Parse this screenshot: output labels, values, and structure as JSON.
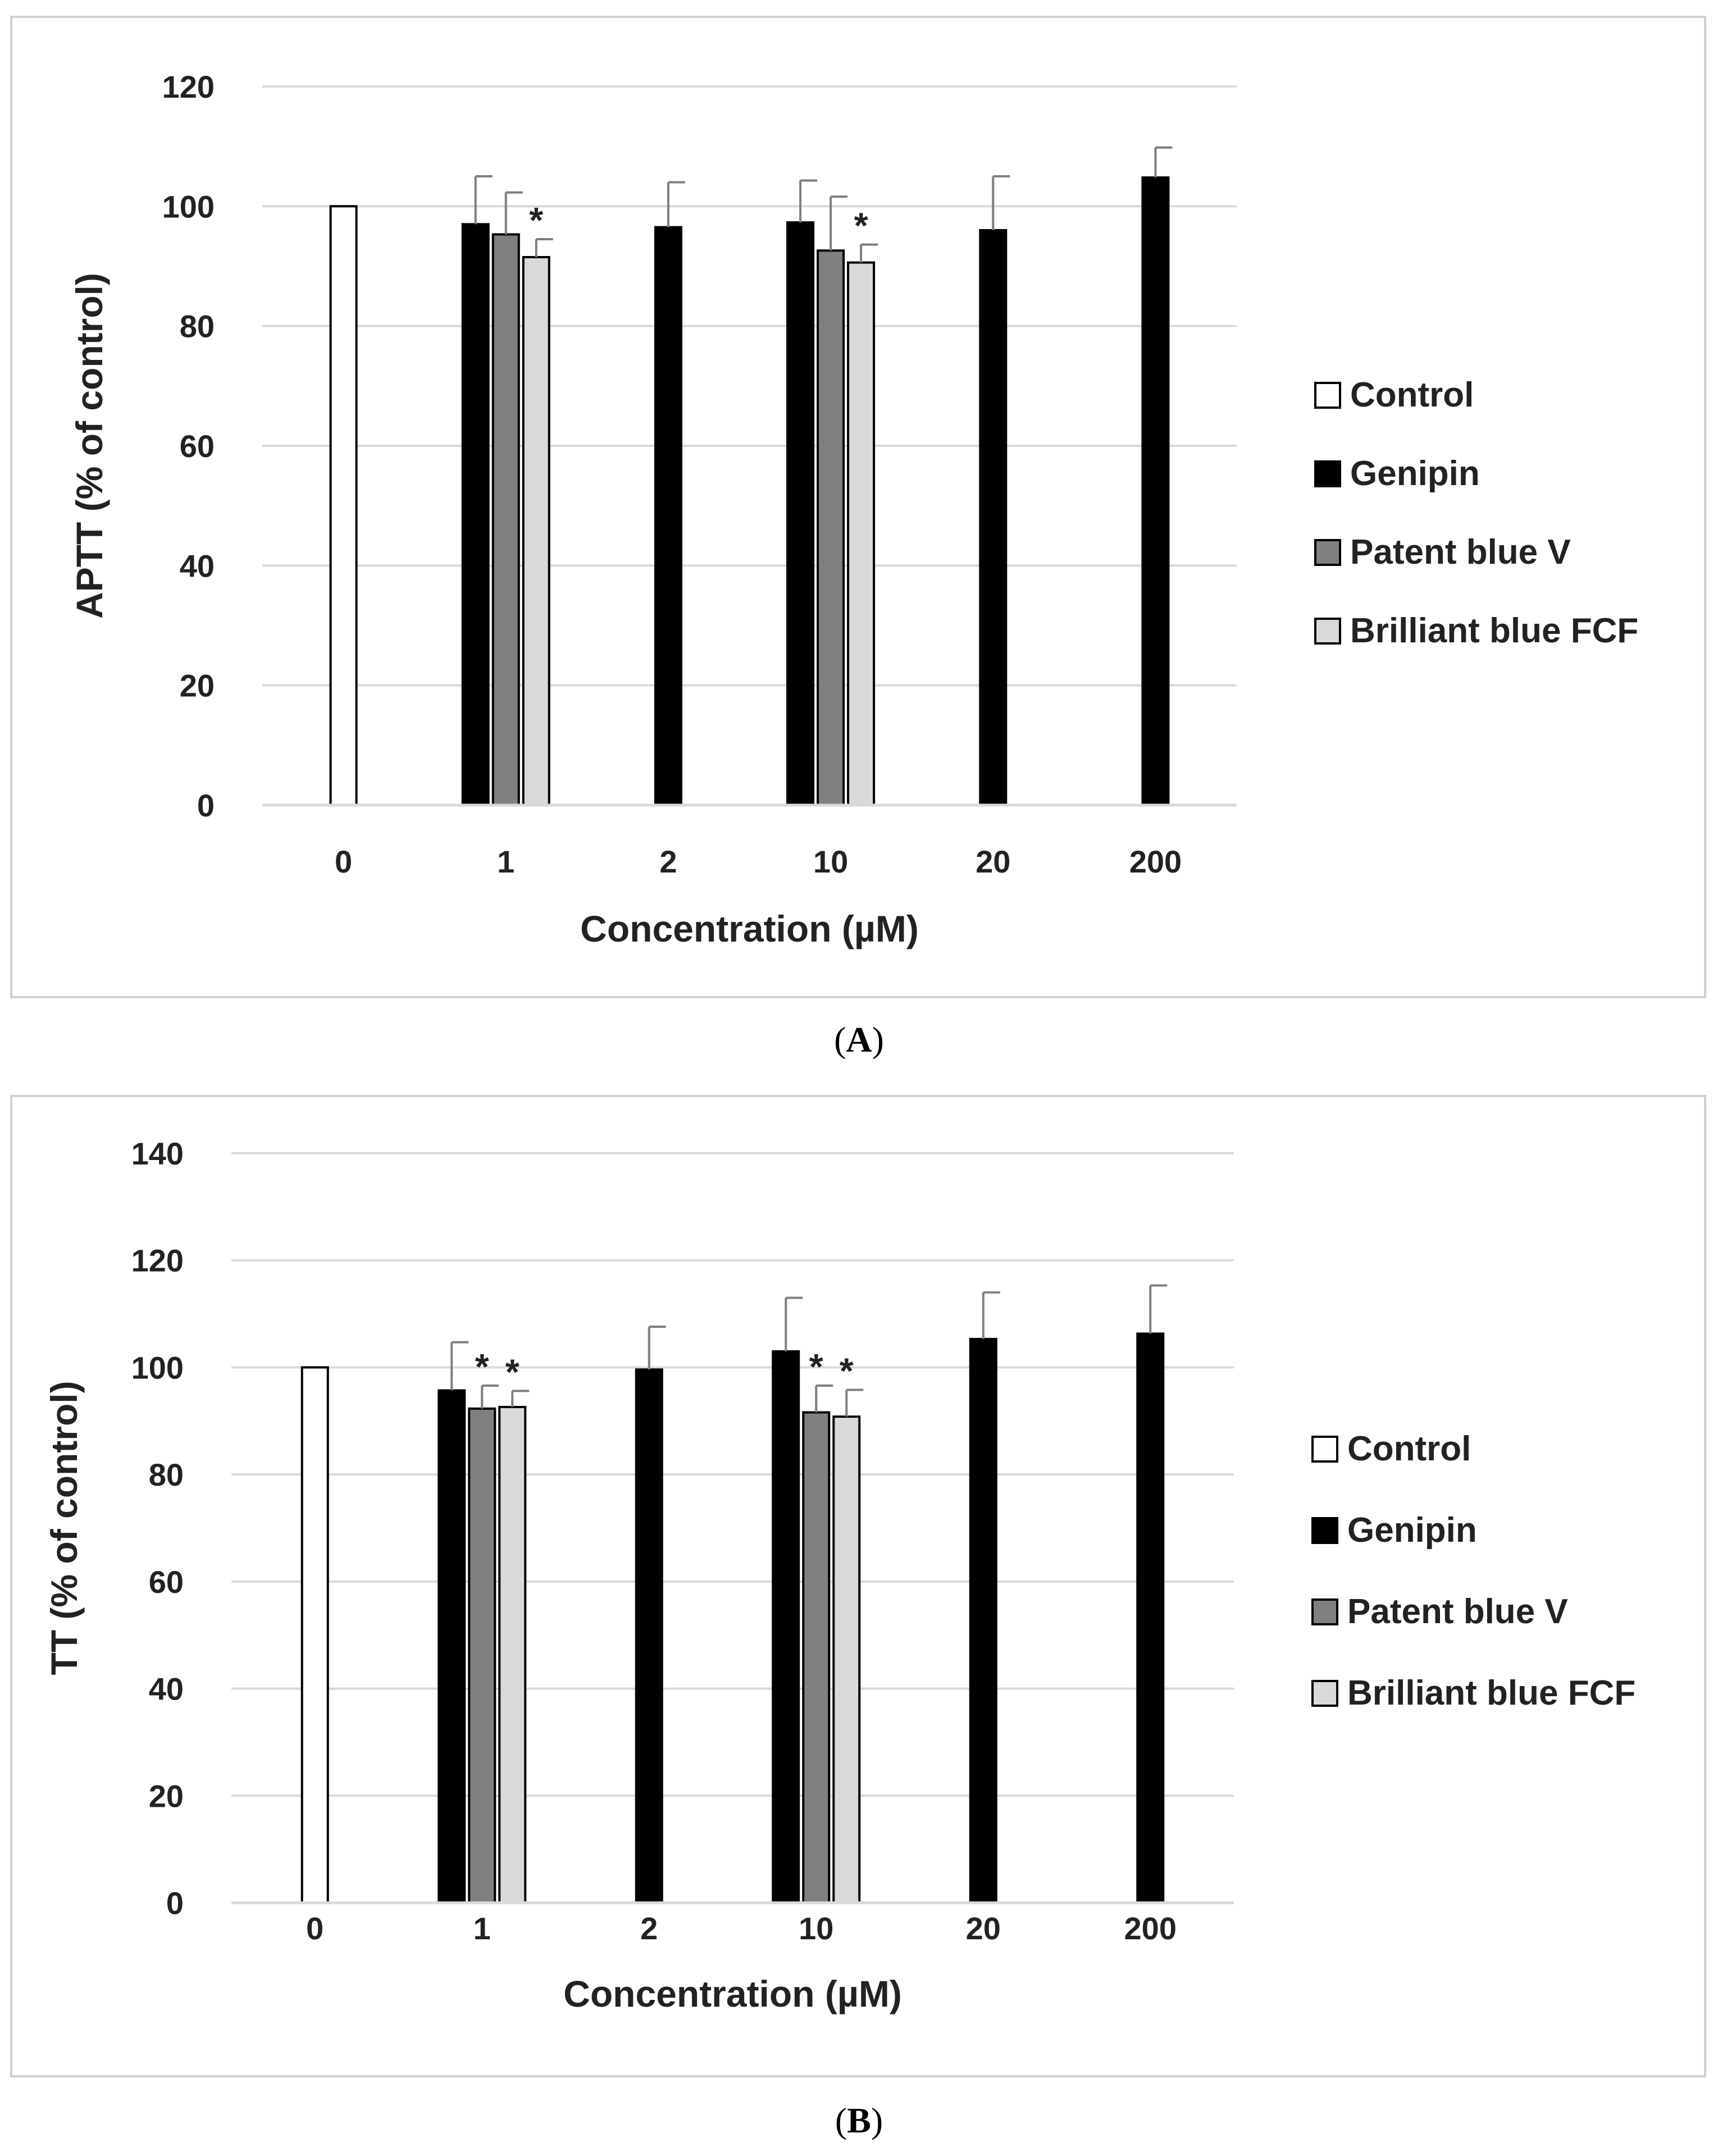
{
  "captions": {
    "a_prefix": "(",
    "a_letter": "A",
    "a_suffix": ")",
    "b_prefix": "(",
    "b_letter": "B",
    "b_suffix": ")"
  },
  "colors": {
    "control": "#ffffff",
    "genipin": "#000000",
    "patent_blue": "#808080",
    "brilliant_blue": "#d9d9d9",
    "grid": "#d9d9d9",
    "error_bar": "#7f7f7f",
    "outline": "#000000"
  },
  "chart_data": [
    {
      "id": "A",
      "type": "bar",
      "title": "",
      "xlabel": "Concentration (µM)",
      "ylabel": "APTT (% of control)",
      "ylim": [
        0,
        120
      ],
      "yticks": [
        0,
        20,
        40,
        60,
        80,
        100,
        120
      ],
      "categories": [
        "0",
        "1",
        "2",
        "10",
        "20",
        "200"
      ],
      "legend_position": "right",
      "series": [
        {
          "name": "Control",
          "color_key": "control",
          "values": [
            100,
            null,
            null,
            null,
            null,
            null
          ],
          "errors": [
            0,
            null,
            null,
            null,
            null,
            null
          ],
          "sig": [
            false,
            null,
            null,
            null,
            null,
            null
          ]
        },
        {
          "name": "Genipin",
          "color_key": "genipin",
          "values": [
            null,
            97,
            96.5,
            97.3,
            96,
            104.8
          ],
          "errors": [
            null,
            8,
            7.5,
            7,
            9,
            5
          ],
          "sig": [
            null,
            false,
            false,
            false,
            false,
            false
          ]
        },
        {
          "name": "Patent blue V",
          "color_key": "patent_blue",
          "values": [
            null,
            95.3,
            null,
            92.6,
            null,
            null
          ],
          "errors": [
            null,
            7,
            null,
            9,
            null,
            null
          ],
          "sig": [
            null,
            false,
            null,
            false,
            null,
            null
          ]
        },
        {
          "name": "Brilliant blue FCF",
          "color_key": "brilliant_blue",
          "values": [
            null,
            91.5,
            null,
            90.6,
            null,
            null
          ],
          "errors": [
            null,
            3,
            null,
            3,
            null,
            null
          ],
          "sig": [
            null,
            true,
            null,
            true,
            null,
            null
          ]
        }
      ],
      "sig_marker": "*"
    },
    {
      "id": "B",
      "type": "bar",
      "title": "",
      "xlabel": "Concentration (µM)",
      "ylabel": "TT (% of control)",
      "ylim": [
        0,
        140
      ],
      "yticks": [
        0,
        20,
        40,
        60,
        80,
        100,
        120,
        140
      ],
      "categories": [
        "0",
        "1",
        "2",
        "10",
        "20",
        "200"
      ],
      "legend_position": "right",
      "series": [
        {
          "name": "Control",
          "color_key": "control",
          "values": [
            100,
            null,
            null,
            null,
            null,
            null
          ],
          "errors": [
            0,
            null,
            null,
            null,
            null,
            null
          ],
          "sig": [
            false,
            null,
            null,
            null,
            null,
            null
          ]
        },
        {
          "name": "Genipin",
          "color_key": "genipin",
          "values": [
            null,
            95.7,
            99.6,
            103,
            105.3,
            106.3
          ],
          "errors": [
            null,
            9,
            8,
            10,
            8.7,
            9
          ],
          "sig": [
            null,
            false,
            false,
            false,
            false,
            false
          ]
        },
        {
          "name": "Patent blue V",
          "color_key": "patent_blue",
          "values": [
            null,
            92.3,
            null,
            91.6,
            null,
            null
          ],
          "errors": [
            null,
            4.3,
            null,
            5,
            null,
            null
          ],
          "sig": [
            null,
            true,
            null,
            true,
            null,
            null
          ]
        },
        {
          "name": "Brilliant blue FCF",
          "color_key": "brilliant_blue",
          "values": [
            null,
            92.6,
            null,
            90.8,
            null,
            null
          ],
          "errors": [
            null,
            3,
            null,
            5,
            null,
            null
          ],
          "sig": [
            null,
            true,
            null,
            true,
            null,
            null
          ]
        }
      ],
      "sig_marker": "*"
    }
  ]
}
